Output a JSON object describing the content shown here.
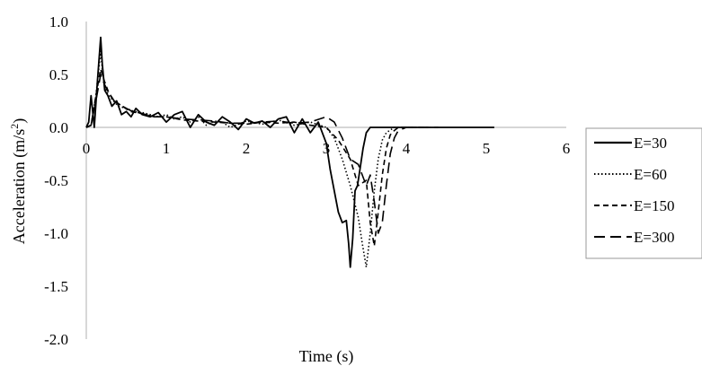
{
  "chart_data": {
    "type": "line",
    "title": "",
    "xlabel": "Time (s)",
    "ylabel_main": "Acceleration (m/s",
    "ylabel_sup": "2",
    "ylabel_end": ")",
    "xlim": [
      0,
      6
    ],
    "ylim": [
      -2.0,
      1.0
    ],
    "xticks": [
      "0",
      "1",
      "2",
      "3",
      "4",
      "5",
      "6"
    ],
    "yticks": [
      "1.0",
      "0.5",
      "0.0",
      "-0.5",
      "-1.0",
      "-1.5",
      "-2.0"
    ],
    "grid": false,
    "legend_position": "right",
    "series": [
      {
        "name": "E=30",
        "style": "solid",
        "x": [
          0,
          0.03,
          0.06,
          0.1,
          0.14,
          0.18,
          0.2,
          0.23,
          0.27,
          0.32,
          0.38,
          0.44,
          0.5,
          0.56,
          0.62,
          0.7,
          0.8,
          0.9,
          1.0,
          1.1,
          1.2,
          1.3,
          1.4,
          1.5,
          1.6,
          1.7,
          1.8,
          1.9,
          2.0,
          2.1,
          2.2,
          2.3,
          2.4,
          2.5,
          2.6,
          2.7,
          2.8,
          2.9,
          3.0,
          3.05,
          3.1,
          3.15,
          3.2,
          3.25,
          3.28,
          3.3,
          3.33,
          3.36,
          3.39,
          3.42,
          3.46,
          3.5,
          3.55,
          3.6,
          3.7,
          3.8,
          4.0,
          4.5,
          5.1
        ],
        "y": [
          0,
          0.05,
          0.3,
          0.0,
          0.45,
          0.85,
          0.6,
          0.35,
          0.3,
          0.2,
          0.25,
          0.12,
          0.15,
          0.1,
          0.18,
          0.12,
          0.1,
          0.14,
          0.05,
          0.12,
          0.15,
          0.0,
          0.12,
          0.05,
          0.02,
          0.1,
          0.05,
          -0.02,
          0.08,
          0.04,
          0.06,
          0.0,
          0.08,
          0.1,
          -0.05,
          0.08,
          -0.05,
          0.05,
          -0.15,
          -0.4,
          -0.6,
          -0.8,
          -0.9,
          -0.88,
          -1.1,
          -1.32,
          -1.05,
          -0.6,
          -0.55,
          -0.4,
          -0.2,
          -0.05,
          0.0,
          0.0,
          0.0,
          0.0,
          0.0,
          0.0,
          0.0
        ]
      },
      {
        "name": "E=60",
        "style": "dotted",
        "x": [
          0,
          0.06,
          0.12,
          0.18,
          0.2,
          0.23,
          0.28,
          0.34,
          0.4,
          0.5,
          0.6,
          0.7,
          0.8,
          0.9,
          1.0,
          1.1,
          1.2,
          1.3,
          1.4,
          1.5,
          1.6,
          1.7,
          1.8,
          1.9,
          2.0,
          2.2,
          2.4,
          2.6,
          2.8,
          3.0,
          3.1,
          3.2,
          3.3,
          3.4,
          3.45,
          3.5,
          3.55,
          3.6,
          3.65,
          3.7,
          3.75,
          3.85,
          4.0,
          4.3
        ],
        "y": [
          0,
          0.02,
          0.3,
          0.72,
          0.55,
          0.38,
          0.3,
          0.25,
          0.2,
          0.18,
          0.15,
          0.14,
          0.12,
          0.1,
          0.12,
          0.08,
          0.1,
          0.05,
          0.1,
          0.02,
          0.06,
          0.05,
          0.0,
          0.03,
          0.06,
          0.03,
          0.07,
          0.02,
          0.05,
          0.0,
          -0.1,
          -0.3,
          -0.55,
          -0.85,
          -1.1,
          -1.32,
          -1.0,
          -0.6,
          -0.3,
          -0.12,
          -0.05,
          0.0,
          0.0,
          0.0
        ]
      },
      {
        "name": "E=150",
        "style": "dashed",
        "x": [
          0,
          0.06,
          0.12,
          0.18,
          0.22,
          0.28,
          0.35,
          0.45,
          0.55,
          0.7,
          0.85,
          1.0,
          1.2,
          1.4,
          1.6,
          1.8,
          2.0,
          2.2,
          2.4,
          2.6,
          2.8,
          3.0,
          3.15,
          3.3,
          3.4,
          3.5,
          3.55,
          3.6,
          3.65,
          3.7,
          3.75,
          3.8,
          3.85,
          3.9,
          4.0,
          4.2
        ],
        "y": [
          0,
          0.02,
          0.3,
          0.55,
          0.45,
          0.33,
          0.25,
          0.2,
          0.15,
          0.13,
          0.1,
          0.1,
          0.07,
          0.06,
          0.05,
          0.04,
          0.03,
          0.05,
          0.04,
          0.05,
          0.02,
          0.0,
          -0.12,
          -0.3,
          -0.55,
          -0.5,
          -0.9,
          -1.12,
          -0.8,
          -0.45,
          -0.2,
          -0.07,
          -0.03,
          0.0,
          0.0,
          0.0
        ]
      },
      {
        "name": "E=300",
        "style": "longdash",
        "x": [
          0,
          0.06,
          0.12,
          0.18,
          0.22,
          0.28,
          0.35,
          0.45,
          0.55,
          0.7,
          0.85,
          1.0,
          1.2,
          1.4,
          1.6,
          1.8,
          2.0,
          2.2,
          2.4,
          2.6,
          2.8,
          3.0,
          3.1,
          3.2,
          3.3,
          3.4,
          3.5,
          3.55,
          3.6,
          3.65,
          3.7,
          3.75,
          3.8,
          3.85,
          3.9,
          4.0,
          4.2,
          4.4
        ],
        "y": [
          0,
          0.02,
          0.25,
          0.5,
          0.42,
          0.32,
          0.25,
          0.2,
          0.16,
          0.13,
          0.1,
          0.1,
          0.08,
          0.07,
          0.06,
          0.04,
          0.04,
          0.05,
          0.06,
          0.04,
          0.05,
          0.1,
          0.05,
          -0.1,
          -0.3,
          -0.35,
          -0.55,
          -0.45,
          -0.7,
          -1.0,
          -0.9,
          -0.55,
          -0.25,
          -0.1,
          -0.03,
          0.0,
          0.0,
          0.0
        ]
      }
    ]
  }
}
